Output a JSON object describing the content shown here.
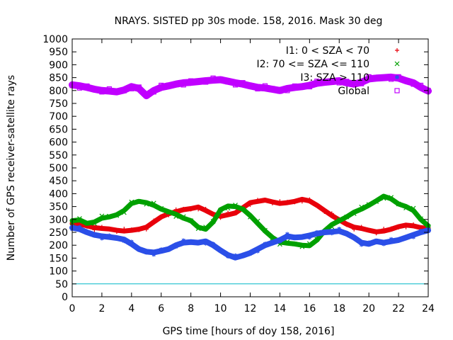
{
  "chart_data": {
    "type": "scatter",
    "title": "NRAYS. SISTED pp 30s mode. 158, 2016. Mask 30 deg",
    "xlabel": "GPS time [hours of doy 158, 2016]",
    "ylabel": "Number of GPS receiver-satellite rays",
    "xlim": [
      0,
      24
    ],
    "ylim": [
      0,
      1000
    ],
    "xticks": [
      0,
      2,
      4,
      6,
      8,
      10,
      12,
      14,
      16,
      18,
      20,
      22,
      24
    ],
    "yticks": [
      0,
      50,
      100,
      150,
      200,
      250,
      300,
      350,
      400,
      450,
      500,
      550,
      600,
      650,
      700,
      750,
      800,
      850,
      900,
      950,
      1000
    ],
    "legend_position": "top-right",
    "reference_line": {
      "y": 50,
      "color": "#00b8c8"
    },
    "series": [
      {
        "name": "I1: 0 < SZA < 70",
        "color": "#e8000b",
        "marker": "+",
        "x": [
          0,
          0.5,
          1,
          1.5,
          2,
          2.5,
          3,
          3.5,
          4,
          4.5,
          5,
          5.5,
          6,
          6.5,
          7,
          7.5,
          8,
          8.5,
          9,
          9.5,
          10,
          10.5,
          11,
          11.5,
          12,
          12.5,
          13,
          13.5,
          14,
          14.5,
          15,
          15.5,
          16,
          16.5,
          17,
          17.5,
          18,
          18.5,
          19,
          19.5,
          20,
          20.5,
          21,
          21.5,
          22,
          22.5,
          23,
          23.5,
          24
        ],
        "values": [
          285,
          282,
          275,
          268,
          265,
          263,
          258,
          255,
          258,
          262,
          270,
          290,
          310,
          322,
          330,
          338,
          342,
          348,
          335,
          320,
          312,
          318,
          325,
          345,
          365,
          370,
          375,
          368,
          362,
          365,
          370,
          378,
          372,
          355,
          335,
          315,
          298,
          282,
          270,
          265,
          258,
          252,
          255,
          262,
          272,
          278,
          275,
          268,
          265
        ]
      },
      {
        "name": "I2: 70 <= SZA <= 110",
        "color": "#00a000",
        "marker": "x",
        "x": [
          0,
          0.5,
          1,
          1.5,
          2,
          2.5,
          3,
          3.5,
          4,
          4.5,
          5,
          5.5,
          6,
          6.5,
          7,
          7.5,
          8,
          8.5,
          9,
          9.5,
          10,
          10.5,
          11,
          11.5,
          12,
          12.5,
          13,
          13.5,
          14,
          14.5,
          15,
          15.5,
          16,
          16.5,
          17,
          17.5,
          18,
          18.5,
          19,
          19.5,
          20,
          20.5,
          21,
          21.5,
          22,
          22.5,
          23,
          23.5,
          24
        ],
        "values": [
          295,
          298,
          285,
          290,
          305,
          310,
          318,
          335,
          362,
          370,
          365,
          355,
          340,
          330,
          320,
          305,
          295,
          270,
          262,
          290,
          338,
          352,
          350,
          340,
          315,
          285,
          255,
          230,
          212,
          208,
          205,
          200,
          198,
          220,
          255,
          280,
          295,
          310,
          328,
          340,
          355,
          372,
          390,
          380,
          360,
          350,
          335,
          300,
          275
        ]
      },
      {
        "name": "I3: SZA > 110",
        "color": "#2b4fe8",
        "marker": "*",
        "x": [
          0,
          0.5,
          1,
          1.5,
          2,
          2.5,
          3,
          3.5,
          4,
          4.5,
          5,
          5.5,
          6,
          6.5,
          7,
          7.5,
          8,
          8.5,
          9,
          9.5,
          10,
          10.5,
          11,
          11.5,
          12,
          12.5,
          13,
          13.5,
          14,
          14.5,
          15,
          15.5,
          16,
          16.5,
          17,
          17.5,
          18,
          18.5,
          19,
          19.5,
          20,
          20.5,
          21,
          21.5,
          22,
          22.5,
          23,
          23.5,
          24
        ],
        "values": [
          268,
          262,
          250,
          240,
          235,
          232,
          228,
          222,
          205,
          185,
          175,
          172,
          178,
          185,
          200,
          210,
          212,
          210,
          215,
          200,
          180,
          162,
          152,
          160,
          170,
          185,
          200,
          210,
          220,
          235,
          230,
          232,
          238,
          245,
          250,
          252,
          255,
          245,
          230,
          210,
          205,
          215,
          210,
          215,
          220,
          230,
          240,
          250,
          258
        ]
      },
      {
        "name": "Global",
        "color": "#c000ff",
        "marker": "square",
        "x": [
          0,
          0.5,
          1,
          1.5,
          2,
          2.5,
          3,
          3.5,
          4,
          4.5,
          5,
          5.5,
          6,
          6.5,
          7,
          7.5,
          8,
          8.5,
          9,
          9.5,
          10,
          10.5,
          11,
          11.5,
          12,
          12.5,
          13,
          13.5,
          14,
          14.5,
          15,
          15.5,
          16,
          16.5,
          17,
          17.5,
          18,
          18.5,
          19,
          19.5,
          20,
          20.5,
          21,
          21.5,
          22,
          22.5,
          23,
          23.5,
          24
        ],
        "values": [
          822,
          818,
          812,
          805,
          800,
          798,
          795,
          802,
          815,
          808,
          780,
          800,
          812,
          818,
          825,
          830,
          832,
          835,
          838,
          840,
          842,
          836,
          830,
          825,
          818,
          812,
          810,
          805,
          800,
          808,
          812,
          815,
          820,
          828,
          832,
          835,
          838,
          830,
          825,
          832,
          845,
          848,
          850,
          852,
          848,
          838,
          830,
          812,
          798
        ]
      }
    ]
  }
}
